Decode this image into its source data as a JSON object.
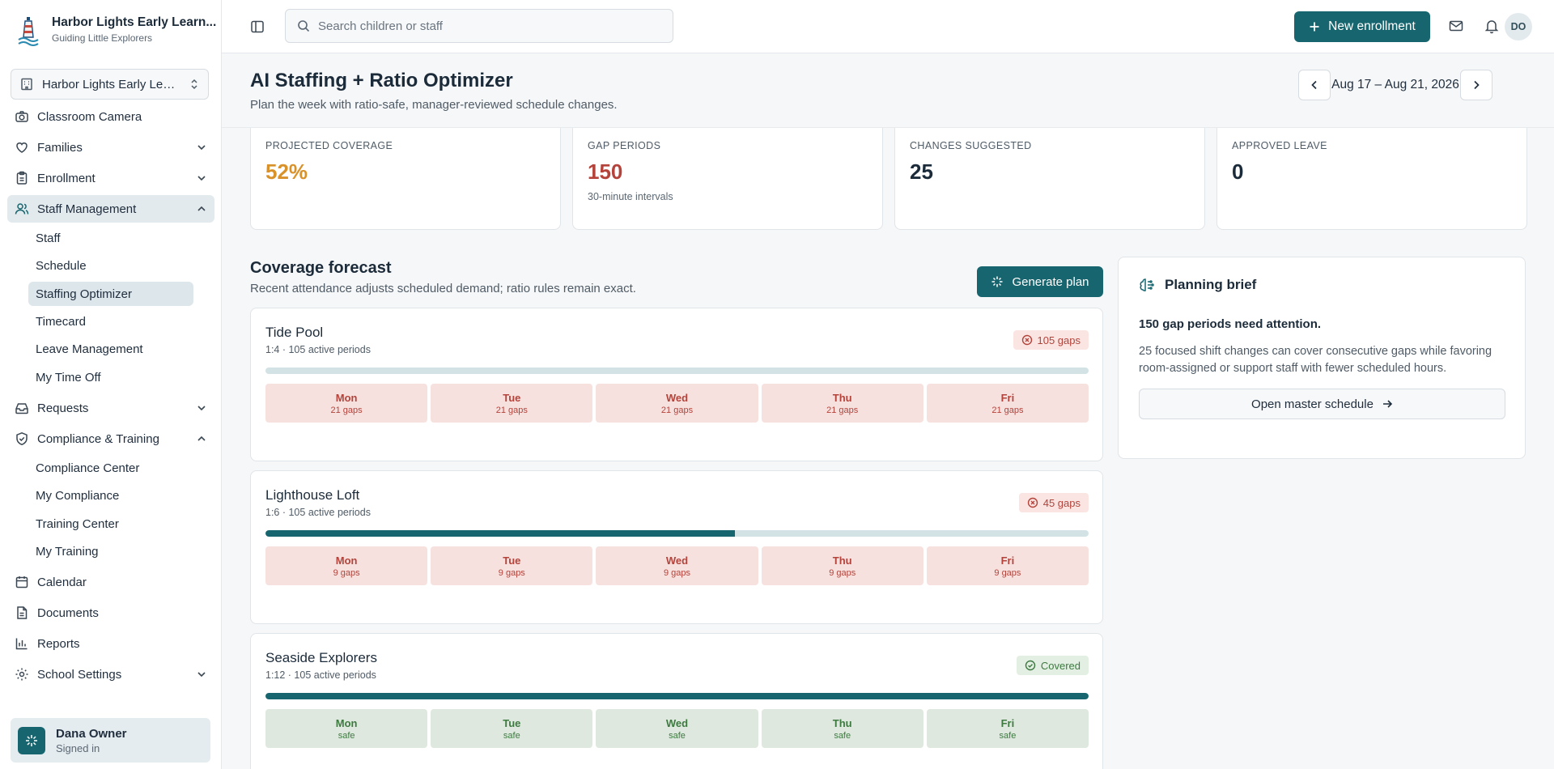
{
  "brand": {
    "name": "Harbor Lights Early Learn...",
    "tagline": "Guiding Little Explorers"
  },
  "school_selector": {
    "value": "Harbor Lights Early Lear..."
  },
  "sidebar": {
    "items": [
      {
        "label": "Classroom Camera",
        "icon": "camera-icon"
      },
      {
        "label": "Families",
        "icon": "heart-icon",
        "expandable": true
      },
      {
        "label": "Enrollment",
        "icon": "clipboard-icon",
        "expandable": true
      },
      {
        "label": "Staff Management",
        "icon": "users-icon",
        "expanded": true,
        "active": true
      },
      {
        "label": "Requests",
        "icon": "inbox-icon",
        "expandable": true
      },
      {
        "label": "Compliance & Training",
        "icon": "shield-icon",
        "expanded": true
      },
      {
        "label": "Calendar",
        "icon": "calendar-icon"
      },
      {
        "label": "Documents",
        "icon": "document-icon"
      },
      {
        "label": "Reports",
        "icon": "bar-chart-icon"
      },
      {
        "label": "School Settings",
        "icon": "gear-icon",
        "expandable": true
      }
    ],
    "staff_sub": [
      "Staff",
      "Schedule",
      "Staffing Optimizer",
      "Timecard",
      "Leave Management",
      "My Time Off"
    ],
    "compliance_sub": [
      "Compliance Center",
      "My Compliance",
      "Training Center",
      "My Training"
    ],
    "active_sub": "Staffing Optimizer"
  },
  "user": {
    "name": "Dana Owner",
    "status": "Signed in"
  },
  "topbar": {
    "search_placeholder": "Search children or staff",
    "new_enrollment": "New enrollment",
    "avatar_initials": "DO"
  },
  "page": {
    "title": "AI Staffing + Ratio Optimizer",
    "subtitle": "Plan the week with ratio-safe, manager-reviewed schedule changes.",
    "week_range": "Aug 17 – Aug 21, 2026"
  },
  "stats": [
    {
      "label": "PROJECTED COVERAGE",
      "value": "52%",
      "note": "",
      "color": "#d9912a"
    },
    {
      "label": "GAP PERIODS",
      "value": "150",
      "note": "30-minute intervals",
      "color": "#b3433b"
    },
    {
      "label": "CHANGES SUGGESTED",
      "value": "25",
      "note": "",
      "color": "#1c2b3a"
    },
    {
      "label": "APPROVED LEAVE",
      "value": "0",
      "note": "",
      "color": "#1c2b3a"
    }
  ],
  "forecast": {
    "title": "Coverage forecast",
    "subtitle": "Recent attendance adjusts scheduled demand; ratio rules remain exact.",
    "generate_label": "Generate plan",
    "rooms": [
      {
        "name": "Tide Pool",
        "meta": "1:4 · 105 active periods",
        "badge": "105 gaps",
        "status": "gap",
        "coverage": 0,
        "days": [
          {
            "day": "Mon",
            "note": "21 gaps"
          },
          {
            "day": "Tue",
            "note": "21 gaps"
          },
          {
            "day": "Wed",
            "note": "21 gaps"
          },
          {
            "day": "Thu",
            "note": "21 gaps"
          },
          {
            "day": "Fri",
            "note": "21 gaps"
          }
        ]
      },
      {
        "name": "Lighthouse Loft",
        "meta": "1:6 · 105 active periods",
        "badge": "45 gaps",
        "status": "gap",
        "coverage": 0.57,
        "days": [
          {
            "day": "Mon",
            "note": "9 gaps"
          },
          {
            "day": "Tue",
            "note": "9 gaps"
          },
          {
            "day": "Wed",
            "note": "9 gaps"
          },
          {
            "day": "Thu",
            "note": "9 gaps"
          },
          {
            "day": "Fri",
            "note": "9 gaps"
          }
        ]
      },
      {
        "name": "Seaside Explorers",
        "meta": "1:12 · 105 active periods",
        "badge": "Covered",
        "status": "ok",
        "coverage": 1,
        "days": [
          {
            "day": "Mon",
            "note": "safe"
          },
          {
            "day": "Tue",
            "note": "safe"
          },
          {
            "day": "Wed",
            "note": "safe"
          },
          {
            "day": "Thu",
            "note": "safe"
          },
          {
            "day": "Fri",
            "note": "safe"
          }
        ]
      }
    ]
  },
  "brief": {
    "heading": "Planning brief",
    "title": "150 gap periods need attention.",
    "text": "25 focused shift changes can cover consecutive gaps while favoring room-assigned or support staff with fewer scheduled hours.",
    "button": "Open master schedule"
  },
  "colors": {
    "accent": "#17666f",
    "danger": "#b3433b",
    "warning": "#d9912a",
    "success": "#3c7a3f"
  }
}
